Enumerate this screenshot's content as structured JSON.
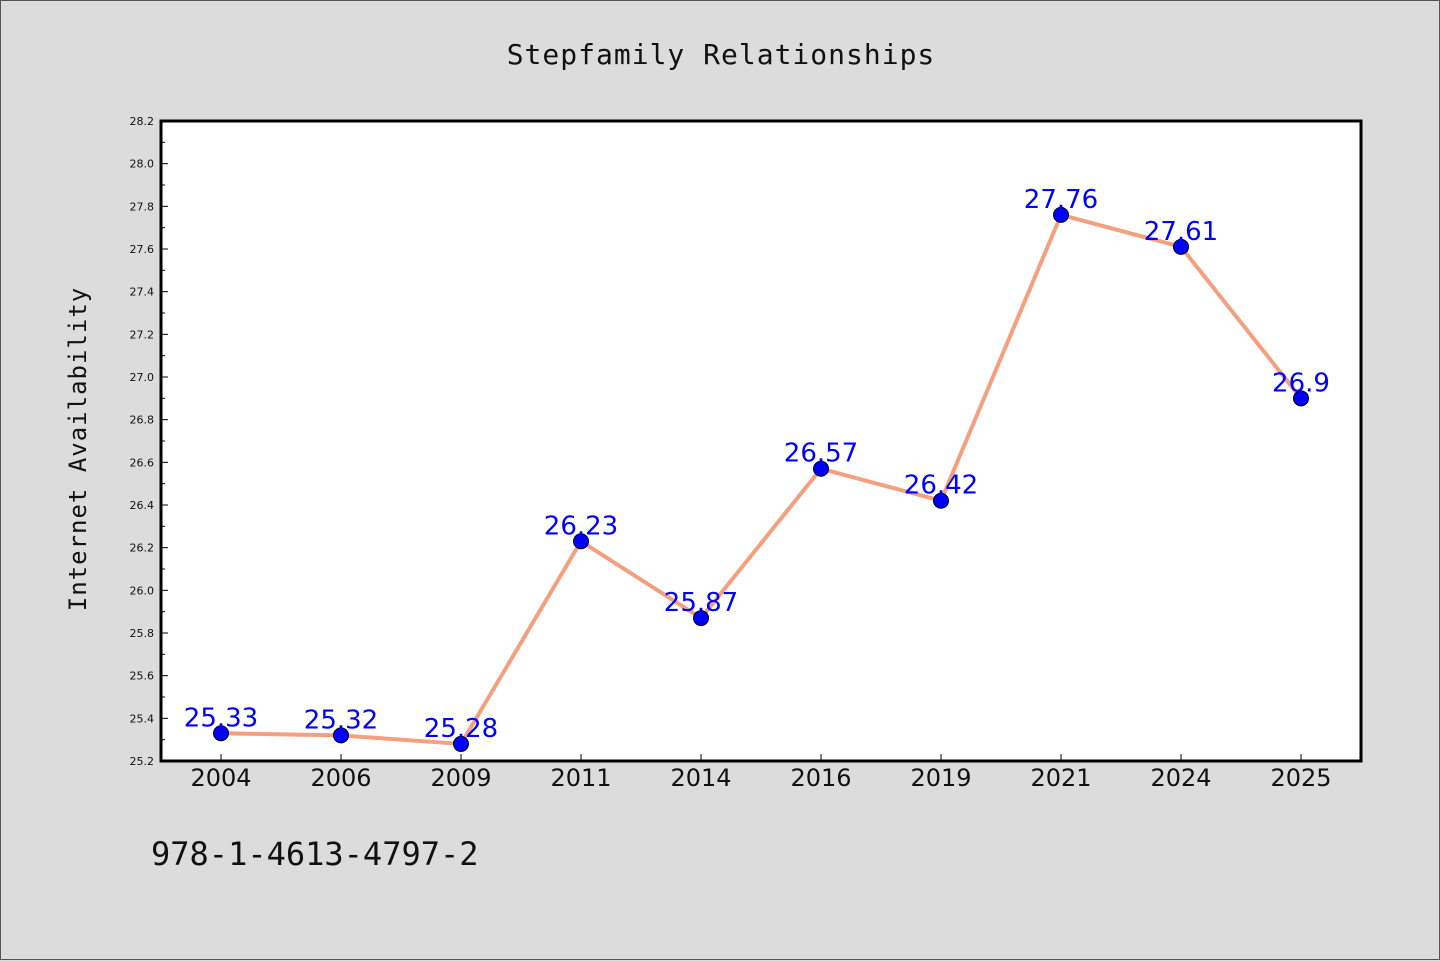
{
  "chart_data": {
    "type": "line",
    "title": "Stepfamily Relationships",
    "xlabel": "",
    "ylabel": "Internet Availability",
    "categories": [
      "2004",
      "2006",
      "2009",
      "2011",
      "2014",
      "2016",
      "2019",
      "2021",
      "2024",
      "2025"
    ],
    "series": [
      {
        "values": [
          25.33,
          25.32,
          25.28,
          26.23,
          25.87,
          26.57,
          26.42,
          27.76,
          27.61,
          26.9
        ],
        "labels": [
          "25.33",
          "25.32",
          "25.28",
          "26.23",
          "25.87",
          "26.57",
          "26.42",
          "27.76",
          "27.61",
          "26.9"
        ]
      }
    ],
    "ylim": [
      25.2,
      28.2
    ],
    "yticks": [
      "25.2",
      "25.4",
      "25.6",
      "25.8",
      "26.0",
      "26.2",
      "26.4",
      "26.6",
      "26.8",
      "27.0",
      "27.2",
      "27.4",
      "27.6",
      "27.8",
      "28.0",
      "28.2"
    ],
    "grid": false,
    "colors": {
      "line": "#f4a07e",
      "marker": "#0000ff",
      "label": "#0000ff",
      "background": "#dcdcdc",
      "plot_background": "#ffffff"
    }
  },
  "footer": {
    "isbn": "978-1-4613-4797-2"
  }
}
